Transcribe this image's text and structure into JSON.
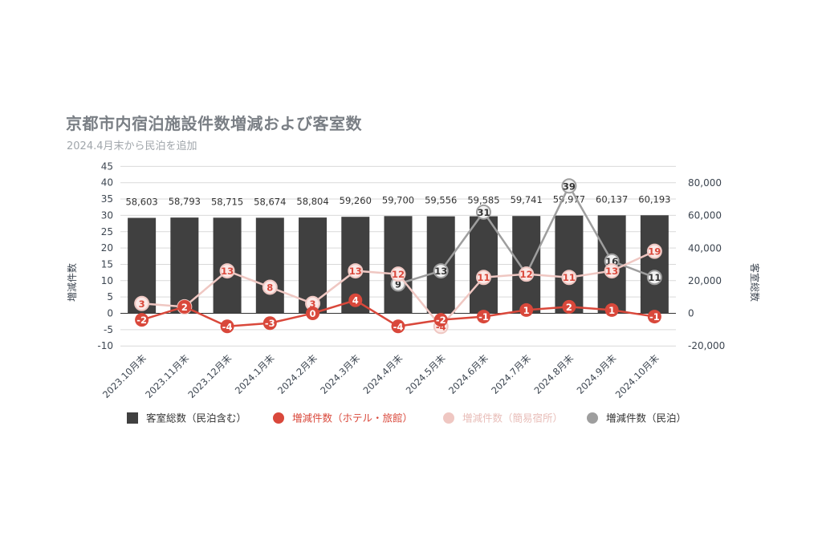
{
  "chart_data": {
    "type": "bar",
    "title": "京都市内宿泊施設件数増減および客室数",
    "subtitle": "2024.4月末から民泊を追加",
    "categories": [
      "2023.10月末",
      "2023.11月末",
      "2023.12月末",
      "2024.1月末",
      "2024.2月末",
      "2024.3月末",
      "2024.4月末",
      "2024.5月末",
      "2024.6月末",
      "2024.7月末",
      "2024.8月末",
      "2024.9月末",
      "2024.10月末"
    ],
    "y_left": {
      "label": "増減件数",
      "range": [
        -10,
        45
      ],
      "ticks": [
        "-10",
        "-5",
        "0",
        "5",
        "10",
        "15",
        "20",
        "25",
        "30",
        "35",
        "40",
        "45"
      ]
    },
    "y_right": {
      "label": "客室総数",
      "range": [
        -20000,
        90000
      ],
      "ticks": [
        "-20,000",
        "0",
        "20,000",
        "40,000",
        "60,000",
        "80,000"
      ]
    },
    "grid": true,
    "legend_position": "bottom",
    "series": [
      {
        "name": "客室総数（民泊含む）",
        "type": "bar",
        "axis": "right",
        "color": "#404040",
        "values": [
          58603,
          58793,
          58715,
          58674,
          58804,
          59260,
          59700,
          59556,
          59585,
          59741,
          59977,
          60137,
          60193
        ],
        "labels": [
          "58,603",
          "58,793",
          "58,715",
          "58,674",
          "58,804",
          "59,260",
          "59,700",
          "59,556",
          "59,585",
          "59,741",
          "59,977",
          "60,137",
          "60,193"
        ]
      },
      {
        "name": "増減件数（ホテル・旅館）",
        "type": "line",
        "axis": "left",
        "color": "#d9483b",
        "label_color": "#ffffff",
        "values": [
          -2,
          2,
          -4,
          -3,
          0,
          4,
          -4,
          -2,
          -1,
          1,
          2,
          1,
          -1
        ],
        "labels": [
          "-2",
          "2",
          "-4",
          "-3",
          "0",
          "4",
          "-4",
          "-2",
          "-1",
          "1",
          "2",
          "1",
          "-1"
        ]
      },
      {
        "name": "増減件数（簡易宿所）",
        "type": "line",
        "axis": "left",
        "color": "#efc7c2",
        "label_color": "#d9483b",
        "values": [
          3,
          2,
          13,
          8,
          3,
          13,
          12,
          -4,
          11,
          12,
          11,
          13,
          19
        ],
        "labels": [
          "3",
          "2",
          "13",
          "8",
          "3",
          "13",
          "12",
          "-4",
          "11",
          "12",
          "11",
          "13",
          "19"
        ]
      },
      {
        "name": "増減件数（民泊）",
        "type": "line",
        "axis": "left",
        "color": "#9e9e9e",
        "label_color": "#333333",
        "values": [
          null,
          null,
          null,
          null,
          null,
          null,
          9,
          13,
          31,
          12,
          39,
          16,
          11
        ],
        "labels": [
          null,
          null,
          null,
          null,
          null,
          null,
          "9",
          "13",
          "31",
          "12",
          "39",
          "16",
          "11"
        ]
      }
    ]
  }
}
